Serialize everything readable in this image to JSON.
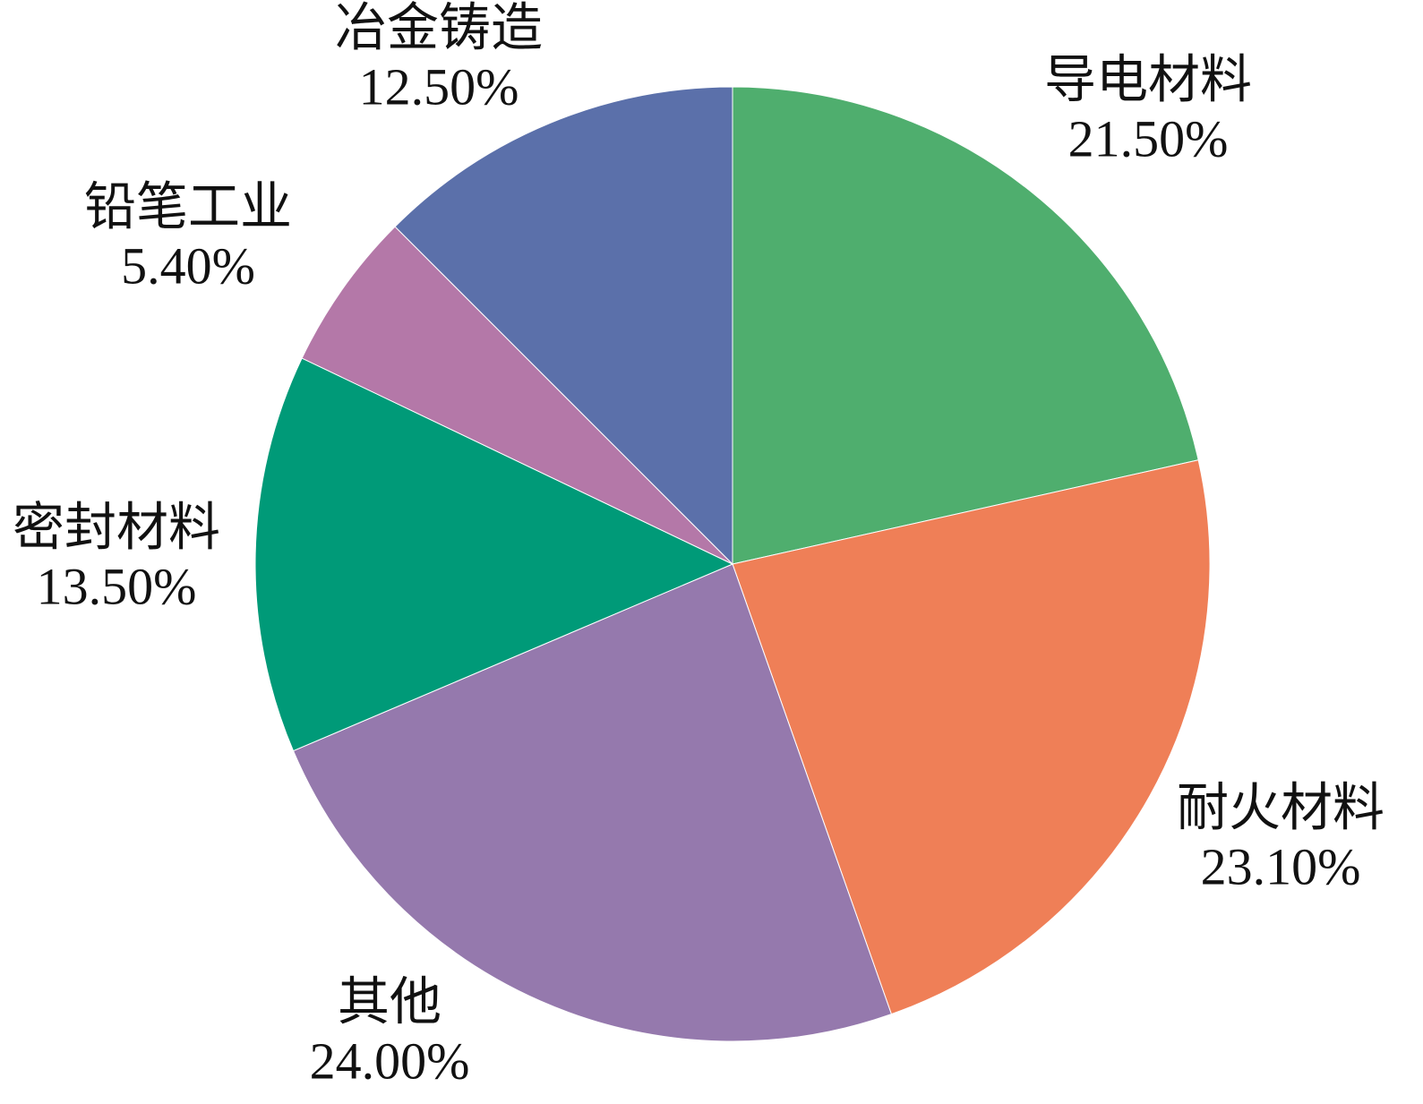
{
  "chart_data": {
    "type": "pie",
    "categories": [
      "导电材料",
      "耐火材料",
      "其他",
      "密封材料",
      "铅笔工业",
      "冶金铸造"
    ],
    "values": [
      21.5,
      23.1,
      24.0,
      13.5,
      5.4,
      12.5
    ],
    "value_labels": [
      "21.50%",
      "23.10%",
      "24.00%",
      "13.50%",
      "5.40%",
      "12.50%"
    ],
    "colors": [
      "#4fae6e",
      "#ef7f57",
      "#9579ad",
      "#009a78",
      "#b478a8",
      "#5b70aa"
    ]
  }
}
